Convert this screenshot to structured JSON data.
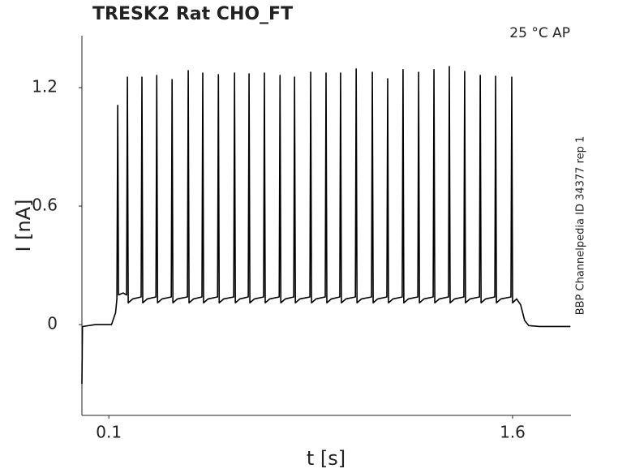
{
  "chart_data": {
    "type": "line",
    "title": "TRESK2  Rat  CHO_FT",
    "annotation": "25 °C  AP",
    "side_note": "BBP Channelpedia ID 34377 rep 1",
    "x_label": "t [s]",
    "y_label": "I [nA]",
    "color": "#000000",
    "xlim": [
      0,
      1.817
    ],
    "ylim": [
      -0.46,
      1.463
    ],
    "xticks": [
      0.1,
      1.6
    ],
    "yticks": [
      0,
      0.6,
      1.2
    ],
    "grid": false,
    "x": [
      0,
      0.002,
      0.05,
      0.1,
      0.11,
      0.125,
      0.13,
      0.133,
      0.136,
      0.153,
      0.166,
      0.169,
      0.172,
      0.189,
      0.22,
      0.223,
      0.226,
      0.243,
      0.275,
      0.278,
      0.281,
      0.298,
      0.332,
      0.335,
      0.338,
      0.355,
      0.392,
      0.395,
      0.398,
      0.415,
      0.446,
      0.449,
      0.452,
      0.469,
      0.504,
      0.507,
      0.51,
      0.527,
      0.564,
      0.567,
      0.57,
      0.587,
      0.618,
      0.621,
      0.624,
      0.641,
      0.675,
      0.678,
      0.681,
      0.698,
      0.733,
      0.736,
      0.739,
      0.756,
      0.787,
      0.79,
      0.793,
      0.81,
      0.847,
      0.85,
      0.853,
      0.87,
      0.904,
      0.907,
      0.91,
      0.927,
      0.958,
      0.961,
      0.964,
      0.981,
      1.016,
      1.019,
      1.022,
      1.039,
      1.076,
      1.079,
      1.082,
      1.099,
      1.133,
      1.136,
      1.139,
      1.156,
      1.19,
      1.193,
      1.196,
      1.213,
      1.248,
      1.251,
      1.254,
      1.271,
      1.305,
      1.308,
      1.311,
      1.328,
      1.362,
      1.365,
      1.368,
      1.385,
      1.419,
      1.422,
      1.425,
      1.442,
      1.477,
      1.48,
      1.483,
      1.5,
      1.534,
      1.537,
      1.54,
      1.557,
      1.594,
      1.597,
      1.6,
      1.615,
      1.63,
      1.645,
      1.66,
      1.7,
      1.815
    ],
    "values": [
      -0.3,
      -0.01,
      0.0,
      0.0,
      0.0,
      0.06,
      0.13,
      1.11,
      0.15,
      0.16,
      0.15,
      1.253,
      0.11,
      0.13,
      0.14,
      1.253,
      0.11,
      0.13,
      0.14,
      1.262,
      0.11,
      0.13,
      0.14,
      1.241,
      0.11,
      0.13,
      0.14,
      1.286,
      0.11,
      0.13,
      0.14,
      1.274,
      0.11,
      0.13,
      0.14,
      1.266,
      0.11,
      0.13,
      0.14,
      1.274,
      0.11,
      0.13,
      0.14,
      1.27,
      0.11,
      0.13,
      0.14,
      1.274,
      0.11,
      0.13,
      0.14,
      1.262,
      0.11,
      0.13,
      0.14,
      1.253,
      0.11,
      0.13,
      0.14,
      1.278,
      0.11,
      0.13,
      0.14,
      1.274,
      0.11,
      0.13,
      0.14,
      1.274,
      0.11,
      0.13,
      0.14,
      1.295,
      0.11,
      0.13,
      0.14,
      1.278,
      0.11,
      0.13,
      0.14,
      1.245,
      0.11,
      0.13,
      0.14,
      1.291,
      0.11,
      0.13,
      0.14,
      1.278,
      0.11,
      0.13,
      0.14,
      1.291,
      0.11,
      0.13,
      0.14,
      1.307,
      0.11,
      0.13,
      0.14,
      1.282,
      0.11,
      0.13,
      0.14,
      1.262,
      0.11,
      0.13,
      0.14,
      1.258,
      0.11,
      0.13,
      0.14,
      1.253,
      0.11,
      0.13,
      0.1,
      0.02,
      -0.005,
      -0.01,
      -0.01
    ]
  }
}
